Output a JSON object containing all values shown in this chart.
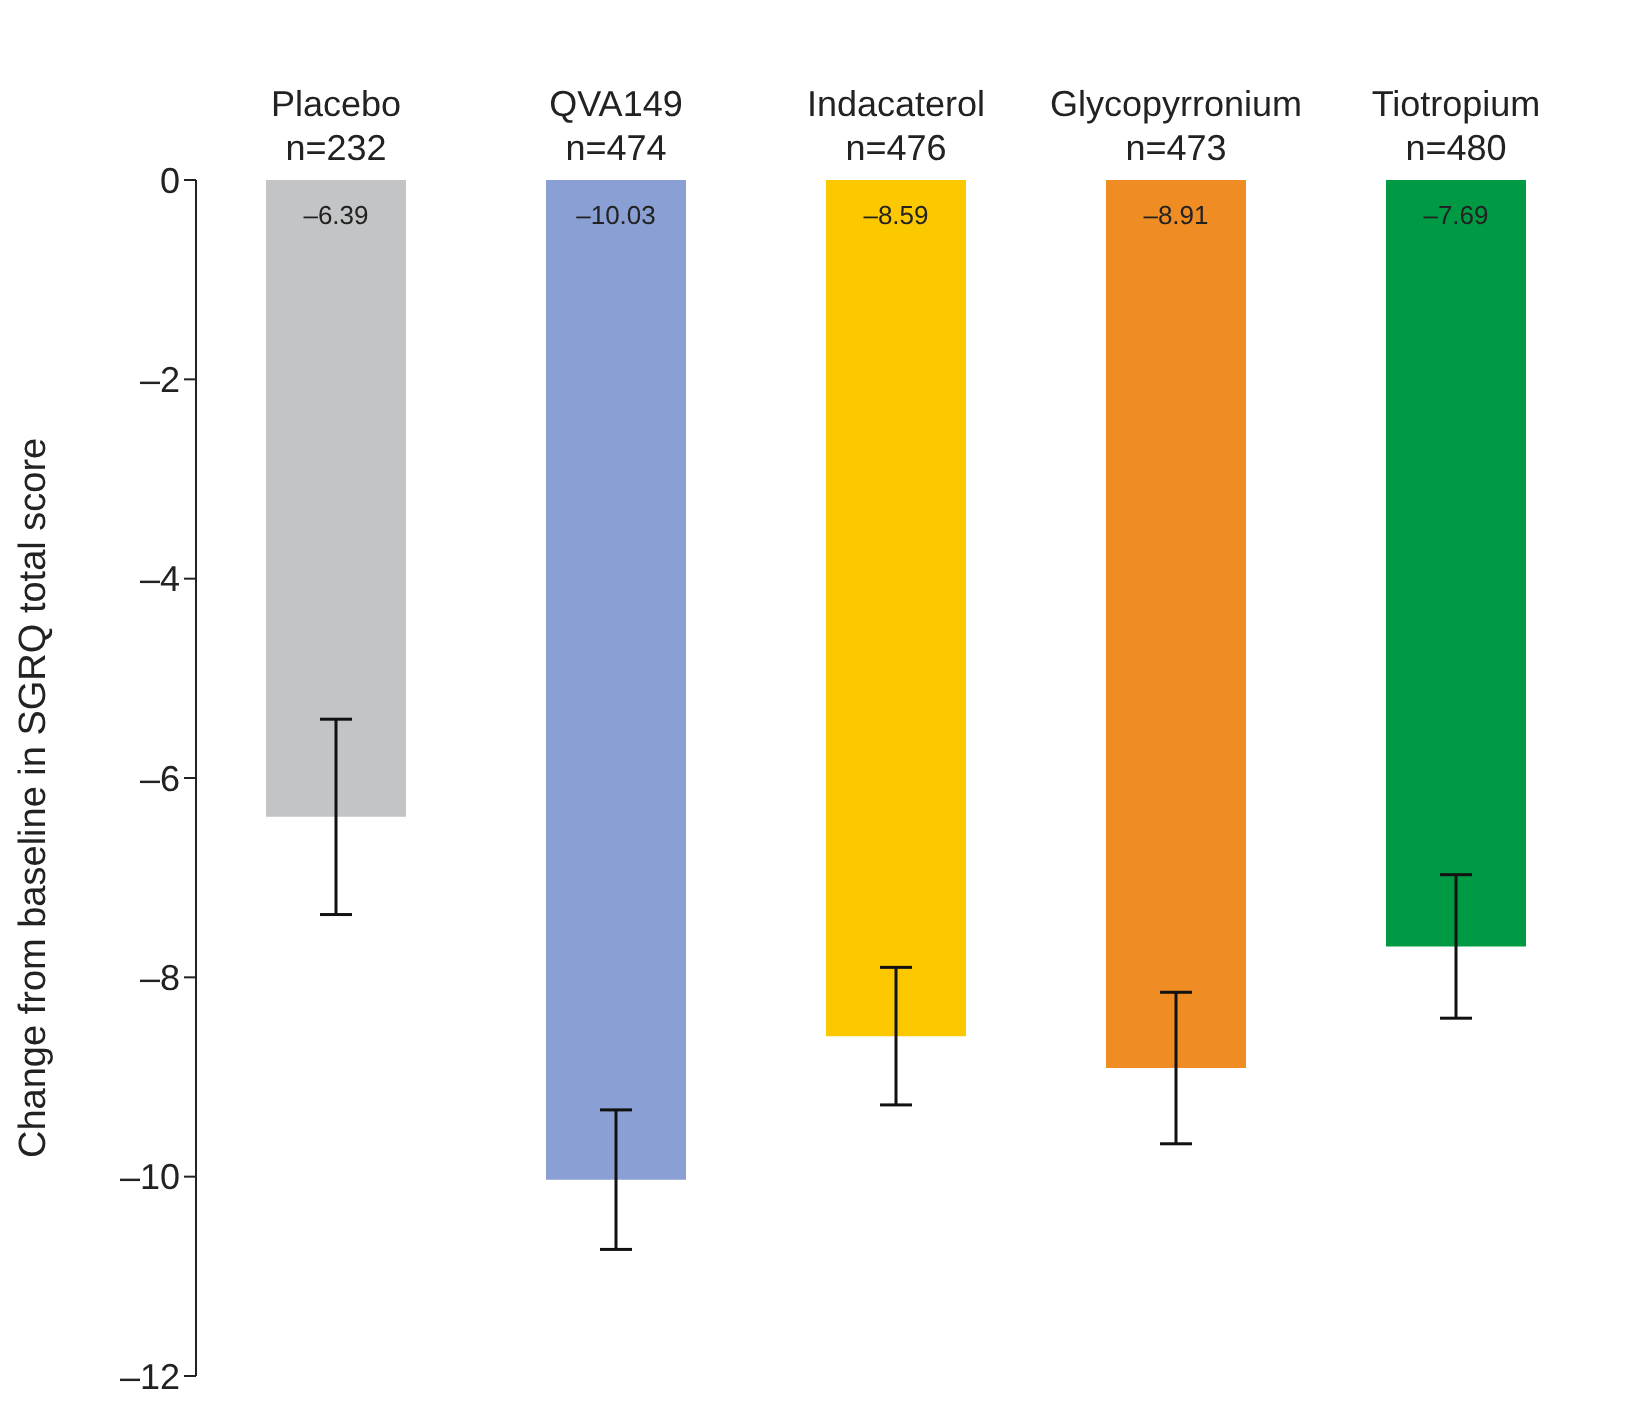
{
  "chart_data": {
    "type": "bar",
    "categories": [
      "Placebo\nn=232",
      "QVA149\nn=474",
      "Indacaterol\nn=476",
      "Glycopyrronium\nn=473",
      "Tiotropium\nn=480"
    ],
    "values": [
      -6.39,
      -10.03,
      -8.59,
      -8.91,
      -7.69
    ],
    "colors": [
      "#c3c4c6",
      "#8a9fd4",
      "#fcc800",
      "#ef8c24",
      "#009a44"
    ],
    "errors": [
      0.98,
      0.7,
      0.69,
      0.76,
      0.72
    ],
    "value_labels": [
      "–6.39",
      "–10.03",
      "–8.59",
      "–8.91",
      "–7.69"
    ],
    "ylabel": "Change from baseline in SGRQ total score",
    "ylim": [
      -12,
      0
    ],
    "yticks": [
      0,
      {
        "value": -2,
        "label": "–2"
      },
      {
        "value": -4,
        "label": "–4"
      },
      {
        "value": -6,
        "label": "–6"
      },
      {
        "value": -8,
        "label": "–8"
      },
      {
        "value": -10,
        "label": "–10"
      },
      {
        "value": -12,
        "label": "–12"
      }
    ],
    "grid": false,
    "legend": false
  }
}
